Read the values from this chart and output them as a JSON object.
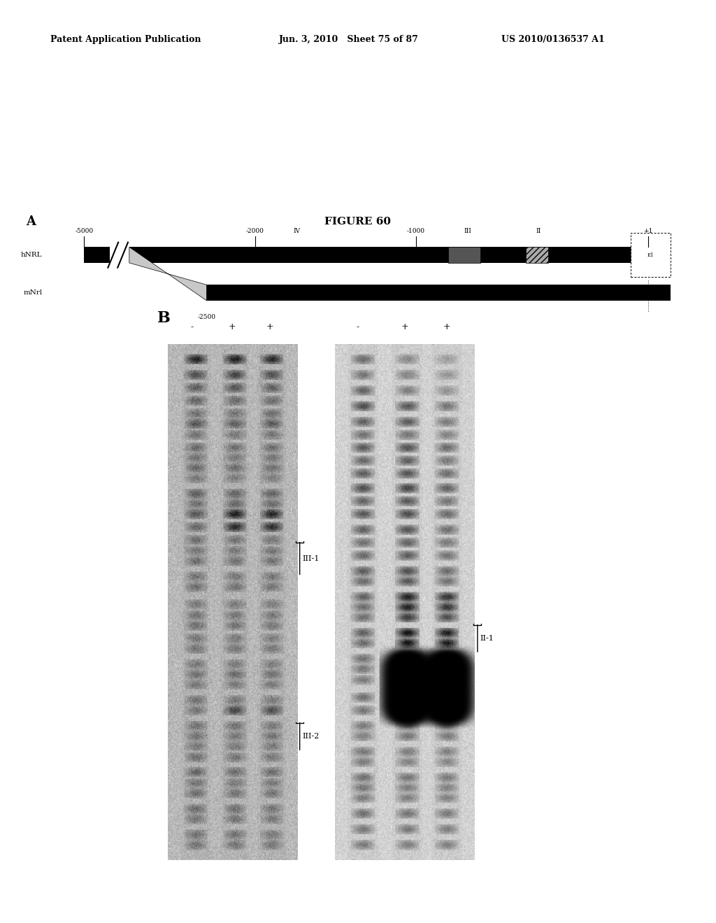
{
  "header_left": "Patent Application Publication",
  "header_mid": "Jun. 3, 2010   Sheet 75 of 87",
  "header_right": "US 2010/0136537 A1",
  "figure_title": "FIGURE 60",
  "panel_a_label": "A",
  "panel_b_label": "B",
  "hNRL_label": "hNRL",
  "mNrl_label": "mNrl",
  "tick_labels": [
    "-5000",
    "-2000",
    "-1000",
    "+1"
  ],
  "mNrl_tick": "-2500",
  "region_labels_IV": "IV",
  "region_labels_III": "III",
  "region_labels_II": "II",
  "exon_label": "E1",
  "gel_left_col_labels": [
    "-",
    "+",
    "+"
  ],
  "gel_right_col_labels": [
    "-",
    "+",
    "+"
  ],
  "band_label_III1": "III-1",
  "band_label_III2": "III-2",
  "band_label_II1": "II-1",
  "background_color": "#ffffff"
}
